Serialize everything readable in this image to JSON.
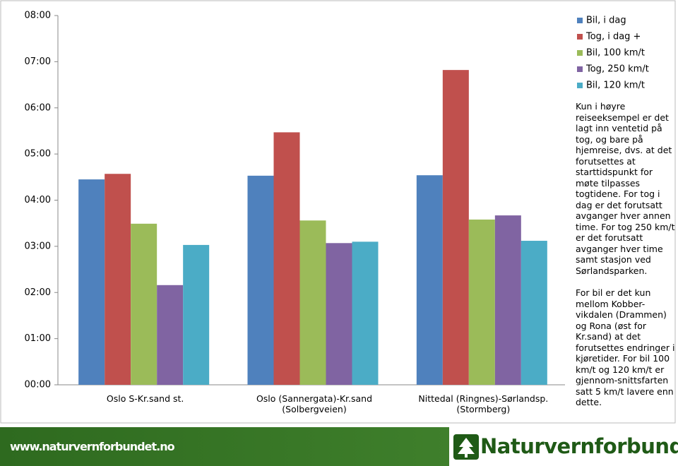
{
  "chart_data": {
    "type": "bar",
    "categories": [
      "Oslo S-Kr.sand st.",
      "Oslo (Sannergata)-Kr.sand\n(Solbergveien)",
      "Nittedal (Ringnes)-Sørlandsp.\n(Stormberg)"
    ],
    "series": [
      {
        "name": "Bil, i dag",
        "color": "#4f81bd",
        "values": [
          4.45,
          4.53,
          4.54
        ]
      },
      {
        "name": "Tog, i dag +",
        "color": "#c0504d",
        "values": [
          4.57,
          5.47,
          6.82
        ]
      },
      {
        "name": "Bil, 100 km/t",
        "color": "#9bbb59",
        "values": [
          3.49,
          3.56,
          3.58
        ]
      },
      {
        "name": "Tog, 250 km/t",
        "color": "#8064a2",
        "values": [
          2.16,
          3.07,
          3.67
        ]
      },
      {
        "name": "Bil, 120 km/t",
        "color": "#4bacc6",
        "values": [
          3.03,
          3.1,
          3.12
        ]
      }
    ],
    "ylim": [
      0,
      8
    ],
    "yticks": [
      {
        "value": 0,
        "label": "00:00"
      },
      {
        "value": 1,
        "label": "01:00"
      },
      {
        "value": 2,
        "label": "02:00"
      },
      {
        "value": 3,
        "label": "03:00"
      },
      {
        "value": 4,
        "label": "04:00"
      },
      {
        "value": 5,
        "label": "05:00"
      },
      {
        "value": 6,
        "label": "06:00"
      },
      {
        "value": 7,
        "label": "07:00"
      },
      {
        "value": 8,
        "label": "08:00"
      }
    ],
    "annotations": [
      "Kun i høyre reiseeksempel er det lagt inn ventetid på tog, og bare på hjemreise, dvs. at det forutsettes at starttidspunkt for møte tilpasses togtidene. For tog i dag er det forutsatt avganger hver annen time. For tog 250 km/t er det forutsatt avganger hver time samt stasjon ved Sørlandsparken.",
      "For bil er det kun mellom Kobber-vikdalen (Drammen) og Rona (øst for Kr.sand) at det forutsettes endringer i kjøretider. For bil 100 km/t og 120 km/t er gjennom-snittsfarten satt 5 km/t lavere enn dette."
    ]
  },
  "footer": {
    "url": "www.naturvernforbundet.no",
    "logo": "Naturvernforbundet"
  }
}
